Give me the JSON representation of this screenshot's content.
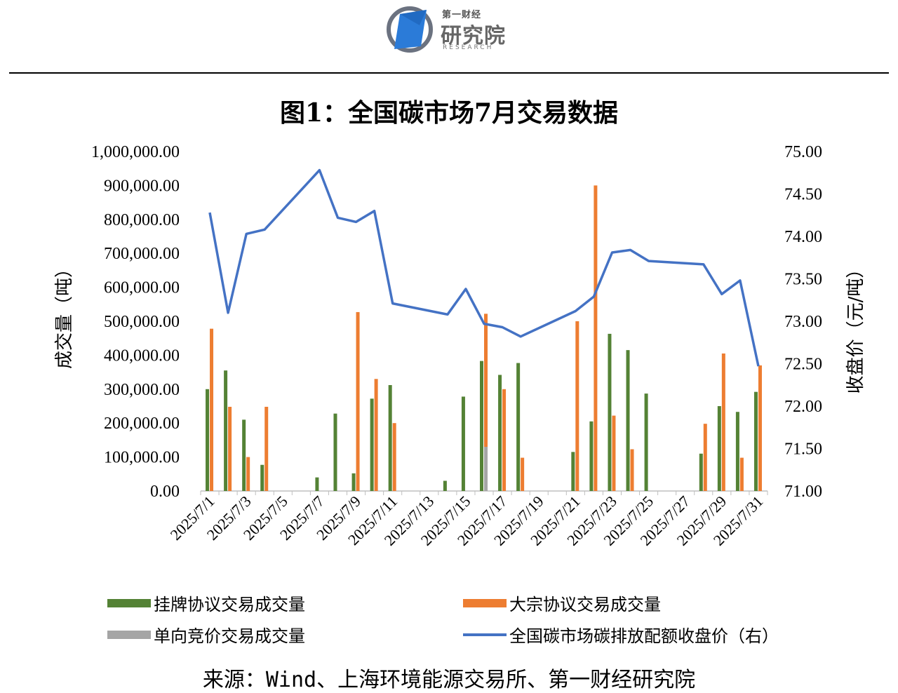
{
  "logo": {
    "top_text": "第一财经",
    "main_text": "研究院",
    "sub_text": "RESEARCH"
  },
  "title": "图1：全国碳市场7月交易数据",
  "source": "来源：Wind、上海环境能源交易所、第一财经研究院",
  "colors": {
    "green": "#548235",
    "orange": "#ED7D31",
    "gray": "#A5A5A5",
    "blue": "#4472C4"
  },
  "chart_data": {
    "type": "bar",
    "ylabel_left": "成交量（吨）",
    "ylabel_right": "收盘价（元/吨）",
    "ylim_left": [
      0,
      1000000
    ],
    "ylim_right": [
      71,
      75
    ],
    "yticks_left": [
      "0.00",
      "100,000.00",
      "200,000.00",
      "300,000.00",
      "400,000.00",
      "500,000.00",
      "600,000.00",
      "700,000.00",
      "800,000.00",
      "900,000.00",
      "1,000,000.00"
    ],
    "yticks_right": [
      "71.00",
      "71.50",
      "72.00",
      "72.50",
      "73.00",
      "73.50",
      "74.00",
      "74.50",
      "75.00"
    ],
    "x_tick_labels": [
      "2025/7/1",
      "2025/7/3",
      "2025/7/5",
      "2025/7/7",
      "2025/7/9",
      "2025/7/11",
      "2025/7/13",
      "2025/7/15",
      "2025/7/17",
      "2025/7/19",
      "2025/7/21",
      "2025/7/23",
      "2025/7/25",
      "2025/7/27",
      "2025/7/29",
      "2025/7/31"
    ],
    "days": [
      1,
      2,
      3,
      4,
      5,
      6,
      7,
      8,
      9,
      10,
      11,
      12,
      13,
      14,
      15,
      16,
      17,
      18,
      19,
      20,
      21,
      22,
      23,
      24,
      25,
      26,
      27,
      28,
      29,
      30,
      31
    ],
    "series": [
      {
        "name": "挂牌协议交易成交量",
        "axis": "left",
        "kind": "bar",
        "values": [
          300000,
          355000,
          210000,
          77000,
          0,
          0,
          40000,
          228000,
          52000,
          272000,
          312000,
          0,
          0,
          30000,
          278000,
          383000,
          342000,
          377000,
          0,
          0,
          115000,
          205000,
          463000,
          415000,
          287000,
          0,
          0,
          110000,
          250000,
          233000,
          292000
        ]
      },
      {
        "name": "大宗协议交易成交量",
        "axis": "left",
        "kind": "bar",
        "values": [
          478000,
          248000,
          100000,
          248000,
          0,
          0,
          0,
          0,
          527000,
          330000,
          200000,
          0,
          0,
          0,
          0,
          522000,
          300000,
          98000,
          0,
          0,
          500000,
          900000,
          222000,
          123000,
          0,
          0,
          0,
          198000,
          405000,
          98000,
          370000
        ]
      },
      {
        "name": "单向竞价交易成交量",
        "axis": "left",
        "kind": "bar",
        "values": [
          0,
          0,
          0,
          0,
          0,
          0,
          0,
          0,
          0,
          0,
          0,
          0,
          0,
          0,
          0,
          130000,
          0,
          0,
          0,
          0,
          0,
          0,
          0,
          0,
          0,
          0,
          0,
          0,
          0,
          0,
          0
        ]
      },
      {
        "name": "全国碳市场碳排放配额收盘价（右）",
        "axis": "right",
        "kind": "line",
        "x": [
          1,
          2,
          3,
          4,
          7,
          8,
          9,
          10,
          11,
          14,
          15,
          16,
          17,
          18,
          21,
          22,
          23,
          24,
          25,
          28,
          29,
          30,
          31
        ],
        "values": [
          74.28,
          73.1,
          74.03,
          74.08,
          74.78,
          74.22,
          74.17,
          74.3,
          73.21,
          73.08,
          73.38,
          72.97,
          72.93,
          72.82,
          73.12,
          73.29,
          73.81,
          73.84,
          73.71,
          73.67,
          73.32,
          73.48,
          72.47
        ]
      }
    ],
    "legend_position": "bottom"
  }
}
